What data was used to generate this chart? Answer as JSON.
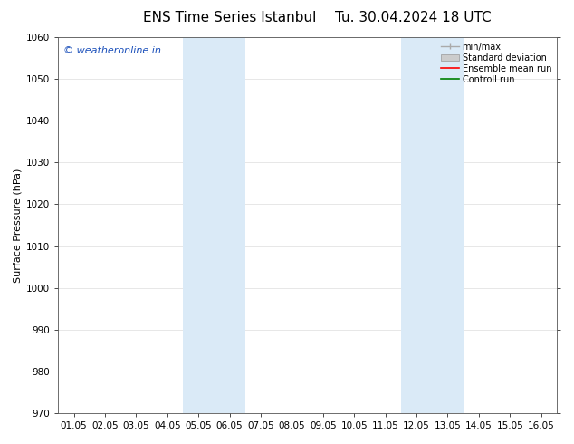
{
  "title_left": "ENS Time Series Istanbul",
  "title_right": "Tu. 30.04.2024 18 UTC",
  "ylabel": "Surface Pressure (hPa)",
  "xlim": [
    0,
    15
  ],
  "ylim": [
    970,
    1060
  ],
  "yticks": [
    970,
    980,
    990,
    1000,
    1010,
    1020,
    1030,
    1040,
    1050,
    1060
  ],
  "xtick_labels": [
    "01.05",
    "02.05",
    "03.05",
    "04.05",
    "05.05",
    "06.05",
    "07.05",
    "08.05",
    "09.05",
    "10.05",
    "11.05",
    "12.05",
    "13.05",
    "14.05",
    "15.05",
    "16.05"
  ],
  "shaded_regions": [
    {
      "xmin": 3.0,
      "xmax": 5.0,
      "color": "#daeaf7"
    },
    {
      "xmin": 10.0,
      "xmax": 12.0,
      "color": "#daeaf7"
    }
  ],
  "background_color": "#ffffff",
  "plot_bg_color": "#ffffff",
  "watermark_text": "© weatheronline.in",
  "watermark_color": "#1a4fba",
  "legend_items": [
    {
      "label": "min/max",
      "color": "#aaaaaa",
      "style": "minmax"
    },
    {
      "label": "Standard deviation",
      "color": "#cccccc",
      "style": "stddev"
    },
    {
      "label": "Ensemble mean run",
      "color": "#ff0000",
      "style": "line"
    },
    {
      "label": "Controll run",
      "color": "#008000",
      "style": "line"
    }
  ],
  "grid_color": "#dddddd",
  "title_fontsize": 11,
  "axis_fontsize": 8,
  "tick_fontsize": 7.5,
  "legend_fontsize": 7,
  "watermark_fontsize": 8
}
